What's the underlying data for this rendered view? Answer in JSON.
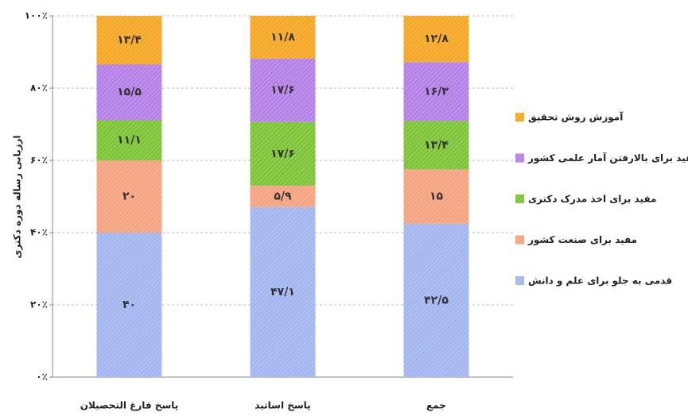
{
  "chart_data": {
    "type": "stacked_bar",
    "y_label": "ارزیابی رساله دوره دکتری",
    "categories": [
      "پاسخ فارغ التحصیلان",
      "پاسخ اساتید",
      "جمع"
    ],
    "series": [
      {
        "name": "قدمی به جلو برای علم و دانش",
        "color": "#a3b5ef",
        "values": [
          40,
          47.1,
          42.5
        ],
        "value_labels": [
          "۴۰",
          "۴۷/۱",
          "۴۲/۵"
        ]
      },
      {
        "name": "مفید برای صنعت کشور",
        "color": "#f4a27f",
        "values": [
          20,
          5.9,
          15
        ],
        "value_labels": [
          "۲۰",
          "۵/۹",
          "۱۵"
        ]
      },
      {
        "name": "مفید برای اخذ مدرک دکتری",
        "color": "#7cc436",
        "values": [
          11.1,
          17.6,
          13.4
        ],
        "value_labels": [
          "۱۱/۱",
          "۱۷/۶",
          "۱۳/۴"
        ]
      },
      {
        "name": "مفید برای بالارفتن آمار علمی کشور",
        "color": "#b480e6",
        "values": [
          15.5,
          17.6,
          16.3
        ],
        "value_labels": [
          "۱۵/۵",
          "۱۷/۶",
          "۱۶/۳"
        ]
      },
      {
        "name": "آموزش روش تحقیق",
        "color": "#f5a623",
        "values": [
          13.4,
          11.8,
          12.8
        ],
        "value_labels": [
          "۱۳/۴",
          "۱۱/۸",
          "۱۲/۸"
        ]
      }
    ],
    "ylim": [
      0,
      100
    ],
    "yticks": [
      {
        "value": 0,
        "label": "۰٪"
      },
      {
        "value": 20,
        "label": "۲۰٪"
      },
      {
        "value": 40,
        "label": "۴۰٪"
      },
      {
        "value": 60,
        "label": "۶۰٪"
      },
      {
        "value": 80,
        "label": "۸۰٪"
      },
      {
        "value": 100,
        "label": "۱۰۰٪"
      }
    ],
    "grid": true,
    "legend": "right"
  }
}
